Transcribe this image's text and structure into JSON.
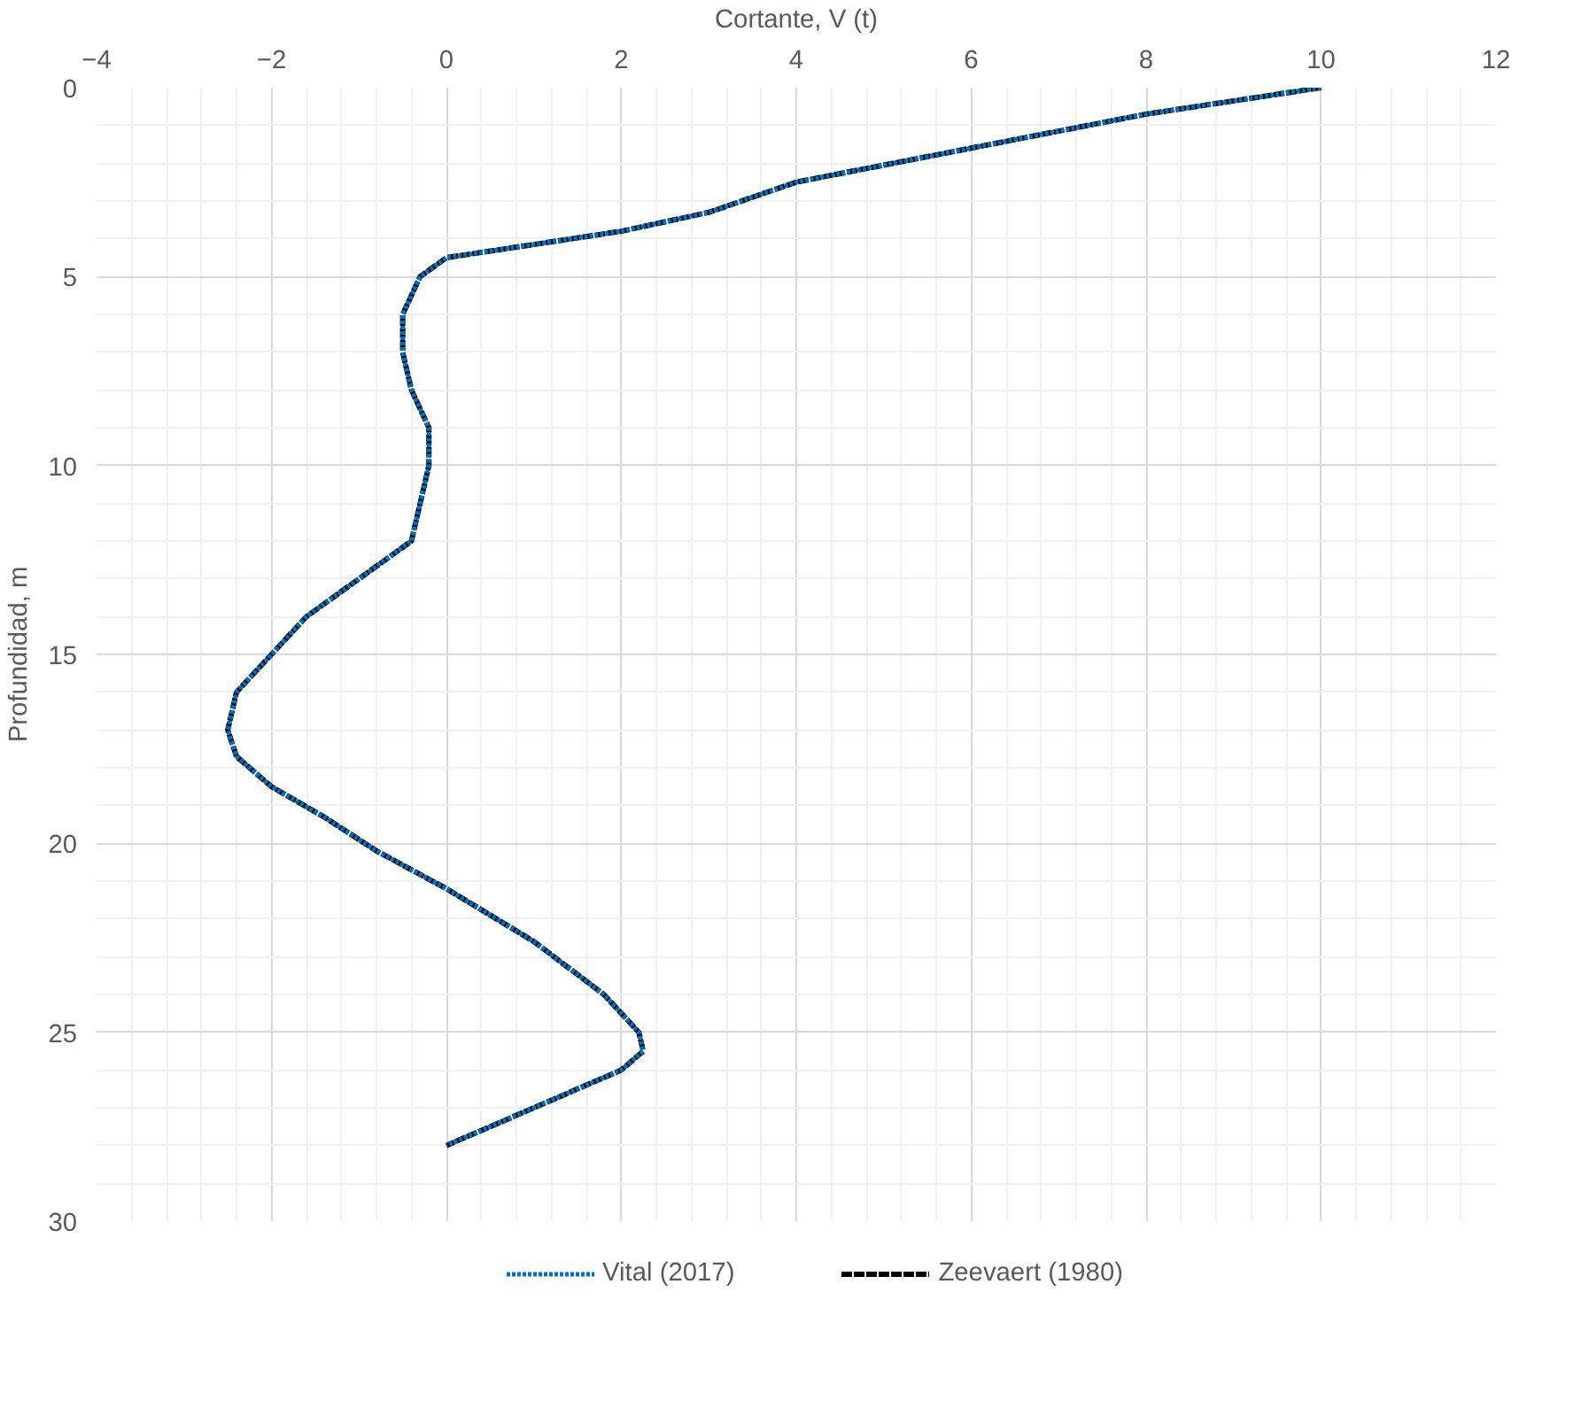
{
  "chart_data": {
    "type": "line",
    "xlabel": "Cortante, V (t)",
    "ylabel": "Profundidad, m",
    "xlim": [
      -4,
      12
    ],
    "xticks": [
      -4,
      -2,
      0,
      2,
      4,
      6,
      8,
      10,
      12
    ],
    "ylim": [
      30,
      0
    ],
    "yticks": [
      0,
      5,
      10,
      15,
      20,
      25,
      30
    ],
    "grid": true,
    "legend": "bottom",
    "marker": "none",
    "series": [
      {
        "name": "Vital (2017)",
        "color": "#0070c0",
        "line_style": "dotted",
        "x": [
          10,
          8,
          6,
          4,
          3,
          2,
          0,
          -0.3,
          -0.5,
          -0.5,
          -0.4,
          -0.2,
          -0.2,
          -0.3,
          -0.4,
          -1.0,
          -1.6,
          -2.0,
          -2.4,
          -2.5,
          -2.4,
          -2.0,
          -1.4,
          -0.8,
          0,
          1,
          1.8,
          2.2,
          2.25,
          2,
          1,
          0
        ],
        "values": [
          0,
          0.7,
          1.6,
          2.5,
          3.3,
          3.8,
          4.5,
          5,
          6,
          7,
          8,
          9,
          10,
          11,
          12,
          13,
          14,
          15,
          16,
          17,
          17.7,
          18.5,
          19.3,
          20.2,
          21.2,
          22.6,
          24,
          25,
          25.5,
          26,
          27,
          28
        ]
      },
      {
        "name": "Zeevaert (1980)",
        "color": "#000000",
        "line_style": "dashed",
        "x": [
          10,
          8,
          6,
          4,
          3,
          2,
          0,
          -0.3,
          -0.5,
          -0.5,
          -0.4,
          -0.2,
          -0.2,
          -0.3,
          -0.4,
          -1.0,
          -1.6,
          -2.0,
          -2.4,
          -2.5,
          -2.4,
          -2.0,
          -1.4,
          -0.8,
          0,
          1,
          1.8,
          2.2,
          2.25,
          2,
          1,
          0
        ],
        "values": [
          0,
          0.7,
          1.6,
          2.5,
          3.3,
          3.8,
          4.5,
          5,
          6,
          7,
          8,
          9,
          10,
          11,
          12,
          13,
          14,
          15,
          16,
          17,
          17.7,
          18.5,
          19.3,
          20.2,
          21.2,
          22.6,
          24,
          25,
          25.5,
          26,
          27,
          28
        ]
      }
    ]
  }
}
